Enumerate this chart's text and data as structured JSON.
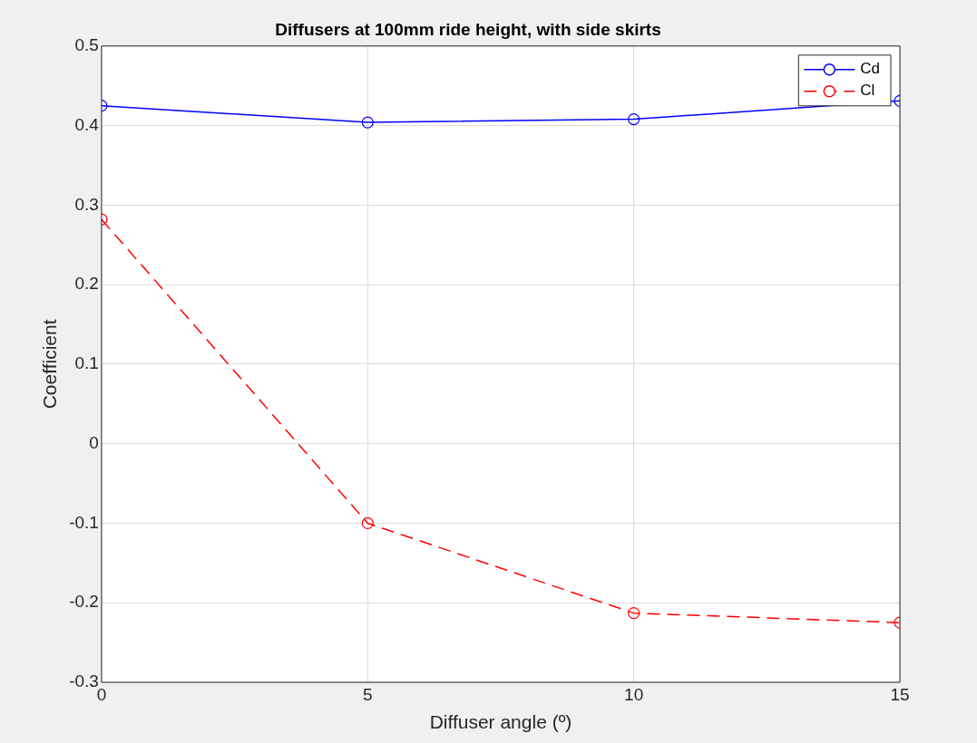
{
  "chart_data": {
    "type": "line",
    "title": "Diffusers at 100mm ride height, with side skirts",
    "xlabel": "Diffuser angle (º)",
    "ylabel": "Coefficient",
    "x": [
      0,
      5,
      10,
      15
    ],
    "series": [
      {
        "name": "Cd",
        "color": "#0000ff",
        "values": [
          0.425,
          0.404,
          0.408,
          0.431
        ],
        "line_style": "solid",
        "marker": "circle"
      },
      {
        "name": "Cl",
        "color": "#ff0000",
        "values": [
          0.282,
          -0.1,
          -0.213,
          -0.225
        ],
        "line_style": "dashed",
        "marker": "circle"
      }
    ],
    "xlim": [
      0,
      15
    ],
    "xticks": [
      0,
      5,
      10,
      15
    ],
    "ylim": [
      -0.3,
      0.5
    ],
    "yticks": [
      -0.3,
      -0.2,
      -0.1,
      0,
      0.1,
      0.2,
      0.3,
      0.4,
      0.5
    ],
    "grid": true,
    "legend": "top right"
  }
}
